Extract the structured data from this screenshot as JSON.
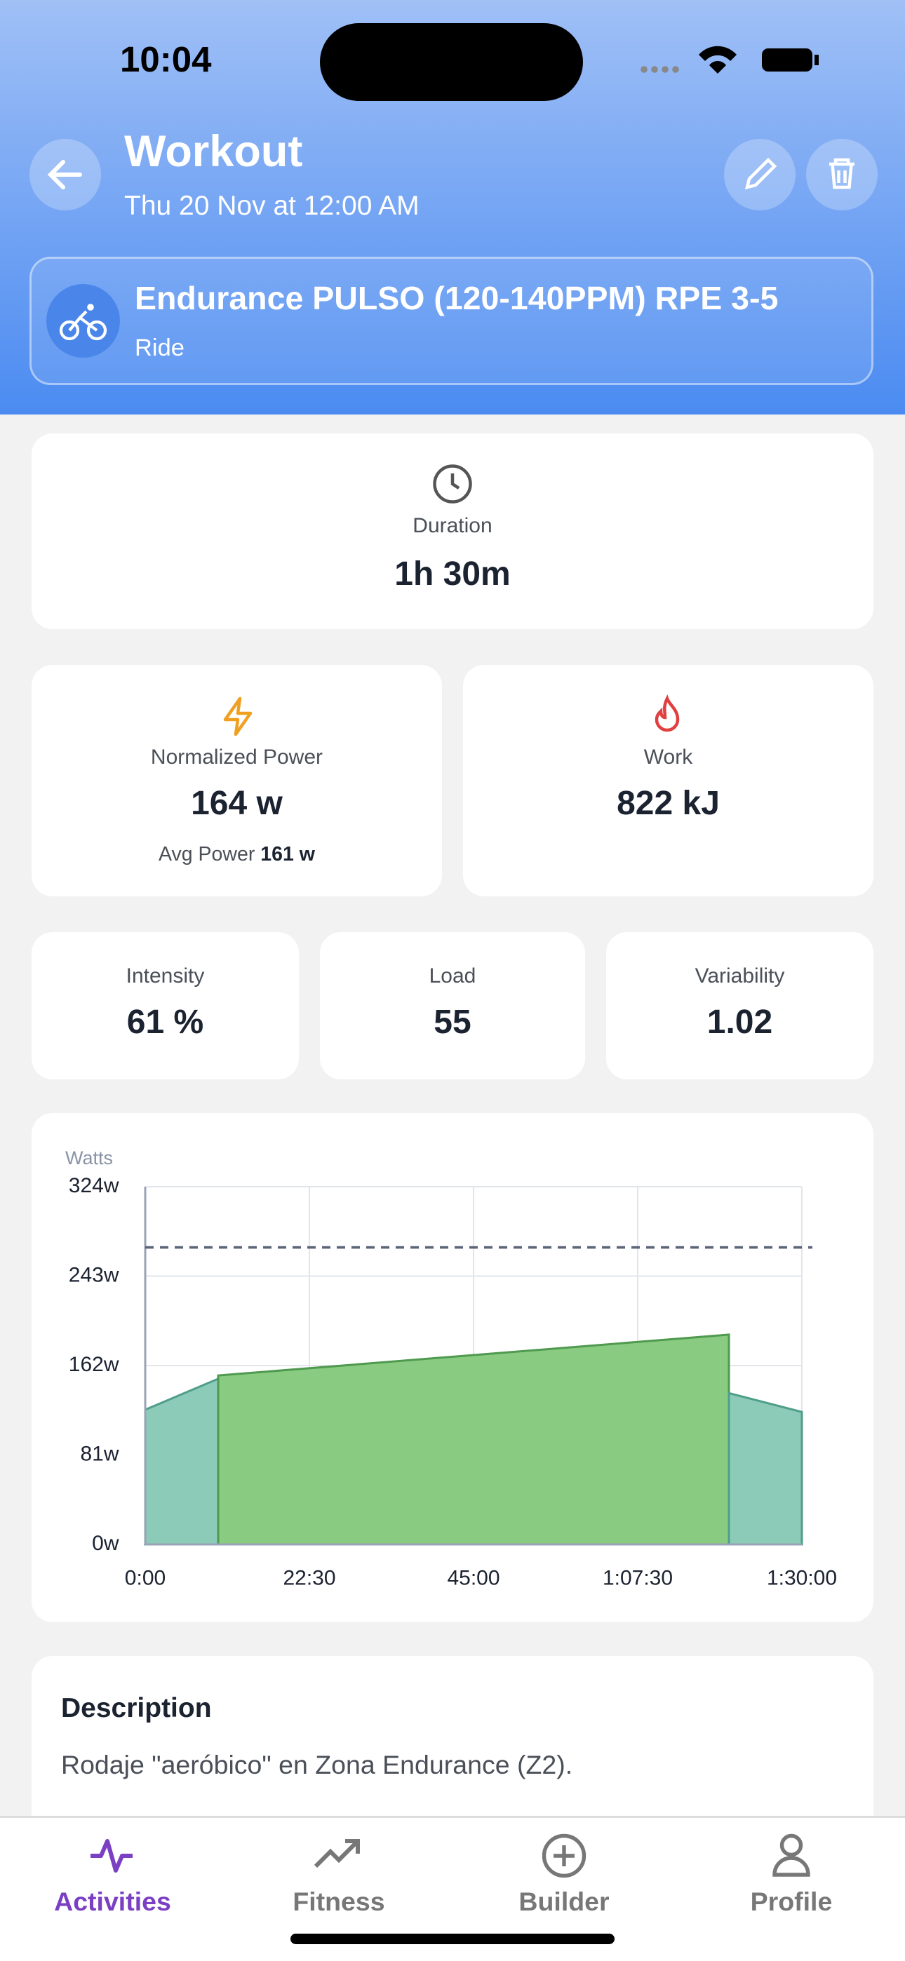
{
  "status_bar": {
    "time": "10:04"
  },
  "header": {
    "title": "Workout",
    "subtitle": "Thu 20 Nov at 12:00 AM"
  },
  "workout": {
    "name": "Endurance PULSO (120-140PPM) RPE 3-5",
    "sport": "Ride"
  },
  "stats": {
    "duration": {
      "label": "Duration",
      "value": "1h 30m"
    },
    "normalized_power": {
      "label": "Normalized Power",
      "value": "164 w",
      "avg_label": "Avg Power",
      "avg_value": "161 w"
    },
    "work": {
      "label": "Work",
      "value": "822 kJ"
    },
    "intensity": {
      "label": "Intensity",
      "value": "61 %"
    },
    "load": {
      "label": "Load",
      "value": "55"
    },
    "variability": {
      "label": "Variability",
      "value": "1.02"
    }
  },
  "chart_data": {
    "type": "area",
    "y_label": "Watts",
    "xlim": [
      0,
      90
    ],
    "xticks": [
      {
        "value": 0,
        "label": "0:00"
      },
      {
        "value": 22.5,
        "label": "22:30"
      },
      {
        "value": 45,
        "label": "45:00"
      },
      {
        "value": 67.5,
        "label": "1:07:30"
      },
      {
        "value": 90,
        "label": "1:30:00"
      }
    ],
    "ylim": [
      0,
      324
    ],
    "yticks": [
      {
        "value": 0,
        "label": "0w"
      },
      {
        "value": 81,
        "label": "81w"
      },
      {
        "value": 162,
        "label": "162w"
      },
      {
        "value": 243,
        "label": "243w"
      },
      {
        "value": 324,
        "label": "324w"
      }
    ],
    "grid": true,
    "reference_line": 269,
    "reference_color": "#5b6479",
    "series": [
      {
        "color": "#8ccbb8",
        "x": [
          0,
          10
        ],
        "values": [
          122,
          150
        ]
      },
      {
        "color": "#8acb82",
        "x": [
          10,
          80
        ],
        "values": [
          153,
          190
        ]
      },
      {
        "color": "#8ccbb8",
        "x": [
          80,
          90
        ],
        "values": [
          137,
          120
        ]
      }
    ]
  },
  "description": {
    "title": "Description",
    "text": "Rodaje \"aeróbico\" en Zona Endurance (Z2)."
  },
  "tab_bar": {
    "tabs": [
      "Activities",
      "Fitness",
      "Builder",
      "Profile"
    ]
  }
}
